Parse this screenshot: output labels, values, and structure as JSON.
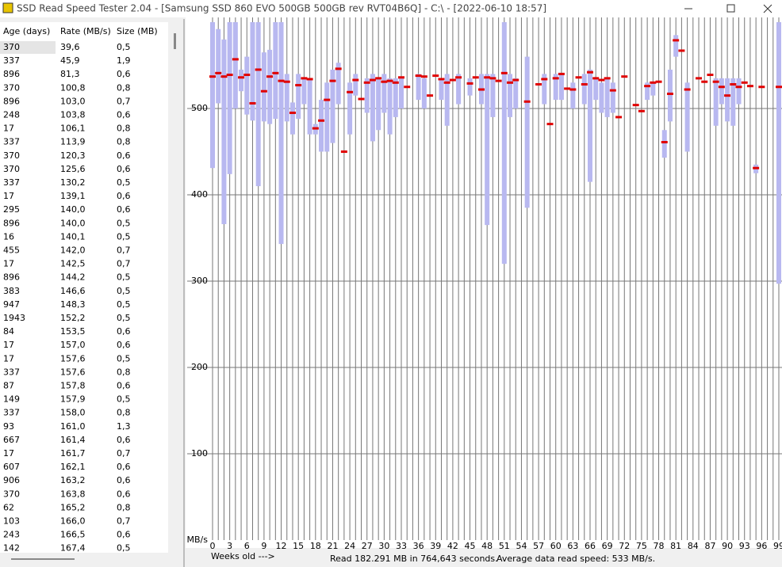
{
  "window": {
    "title": "SSD Read Speed Tester 2.04 - [Samsung SSD 860 EVO 500GB 500GB rev RVT04B6Q] - C:\\ - [2022-06-10 18:57]"
  },
  "table": {
    "headers": [
      "Age (days)",
      "Rate (MB/s)",
      "Size (MB)"
    ],
    "rows": [
      [
        "370",
        "39,6",
        "0,5"
      ],
      [
        "337",
        "45,9",
        "1,9"
      ],
      [
        "896",
        "81,3",
        "0,6"
      ],
      [
        "370",
        "100,8",
        "0,8"
      ],
      [
        "896",
        "103,0",
        "0,7"
      ],
      [
        "248",
        "103,8",
        "0,6"
      ],
      [
        "17",
        "106,1",
        "0,8"
      ],
      [
        "337",
        "113,9",
        "0,8"
      ],
      [
        "370",
        "120,3",
        "0,6"
      ],
      [
        "370",
        "125,6",
        "0,6"
      ],
      [
        "337",
        "130,2",
        "0,5"
      ],
      [
        "17",
        "139,1",
        "0,6"
      ],
      [
        "295",
        "140,0",
        "0,6"
      ],
      [
        "896",
        "140,0",
        "0,5"
      ],
      [
        "16",
        "140,1",
        "0,5"
      ],
      [
        "455",
        "142,0",
        "0,7"
      ],
      [
        "17",
        "142,5",
        "0,7"
      ],
      [
        "896",
        "144,2",
        "0,5"
      ],
      [
        "383",
        "146,6",
        "0,5"
      ],
      [
        "947",
        "148,3",
        "0,5"
      ],
      [
        "1943",
        "152,2",
        "0,5"
      ],
      [
        "84",
        "153,5",
        "0,6"
      ],
      [
        "17",
        "157,0",
        "0,6"
      ],
      [
        "17",
        "157,6",
        "0,5"
      ],
      [
        "337",
        "157,6",
        "0,8"
      ],
      [
        "87",
        "157,8",
        "0,6"
      ],
      [
        "149",
        "157,9",
        "0,5"
      ],
      [
        "337",
        "158,0",
        "0,8"
      ],
      [
        "93",
        "161,0",
        "1,3"
      ],
      [
        "667",
        "161,4",
        "0,6"
      ],
      [
        "17",
        "161,7",
        "0,7"
      ],
      [
        "607",
        "162,1",
        "0,6"
      ],
      [
        "906",
        "163,2",
        "0,6"
      ],
      [
        "370",
        "163,8",
        "0,6"
      ],
      [
        "62",
        "165,2",
        "0,8"
      ],
      [
        "103",
        "166,0",
        "0,7"
      ],
      [
        "243",
        "166,5",
        "0,6"
      ],
      [
        "142",
        "167,4",
        "0,5"
      ]
    ]
  },
  "chart_data": {
    "type": "range",
    "y_unit_label": "MB/s",
    "x_label": "Weeks old --->",
    "x": [
      0,
      1,
      2,
      3,
      4,
      5,
      6,
      7,
      8,
      9,
      10,
      11,
      12,
      13,
      14,
      15,
      16,
      17,
      18,
      19,
      20,
      21,
      22,
      23,
      24,
      25,
      26,
      27,
      28,
      29,
      30,
      31,
      32,
      33,
      34,
      35,
      36,
      37,
      38,
      39,
      40,
      41,
      42,
      43,
      44,
      45,
      46,
      47,
      48,
      49,
      50,
      51,
      52,
      53,
      54,
      55,
      56,
      57,
      58,
      59,
      60,
      61,
      62,
      63,
      64,
      65,
      66,
      67,
      68,
      69,
      70,
      71,
      72,
      73,
      74,
      75,
      76,
      77,
      78,
      79,
      80,
      81,
      82,
      83,
      84,
      85,
      86,
      87,
      88,
      89,
      90,
      91,
      92,
      93,
      94,
      95,
      96,
      97,
      98,
      99
    ],
    "median": [
      537,
      541,
      537,
      539,
      557,
      536,
      539,
      506,
      545,
      520,
      537,
      541,
      532,
      531,
      495,
      527,
      535,
      534,
      477,
      486,
      510,
      532,
      546,
      450,
      519,
      533,
      511,
      530,
      533,
      535,
      531,
      532,
      530,
      536,
      525,
      null,
      538,
      537,
      515,
      538,
      534,
      530,
      533,
      536,
      null,
      529,
      536,
      522,
      536,
      535,
      532,
      541,
      530,
      533,
      null,
      508,
      null,
      528,
      534,
      482,
      535,
      540,
      523,
      522,
      536,
      528,
      542,
      535,
      533,
      535,
      521,
      490,
      537,
      null,
      504,
      497,
      526,
      530,
      531,
      461,
      517,
      579,
      567,
      522,
      null,
      535,
      531,
      539,
      531,
      525,
      515,
      528,
      525,
      530,
      526,
      431,
      525,
      null,
      null,
      525
    ],
    "min": [
      431,
      506,
      366,
      424,
      500,
      520,
      493,
      486,
      410,
      485,
      482,
      488,
      343,
      485,
      470,
      488,
      505,
      470,
      470,
      450,
      450,
      460,
      505,
      null,
      470,
      515,
      null,
      495,
      462,
      475,
      495,
      470,
      490,
      500,
      null,
      null,
      510,
      500,
      null,
      null,
      510,
      480,
      null,
      505,
      null,
      515,
      null,
      505,
      365,
      490,
      null,
      320,
      490,
      500,
      null,
      385,
      null,
      null,
      505,
      null,
      510,
      510,
      null,
      500,
      null,
      505,
      415,
      510,
      495,
      490,
      495,
      null,
      null,
      null,
      null,
      null,
      510,
      515,
      null,
      443,
      485,
      560,
      null,
      450,
      null,
      null,
      null,
      null,
      480,
      505,
      485,
      480,
      505,
      null,
      null,
      425,
      null,
      null,
      null,
      297
    ],
    "max": [
      600,
      592,
      580,
      600,
      600,
      545,
      560,
      600,
      600,
      565,
      568,
      600,
      600,
      540,
      507,
      540,
      535,
      535,
      482,
      510,
      530,
      545,
      553,
      null,
      530,
      540,
      null,
      535,
      540,
      535,
      540,
      535,
      535,
      535,
      null,
      null,
      540,
      535,
      null,
      null,
      535,
      540,
      null,
      540,
      null,
      535,
      null,
      540,
      540,
      540,
      null,
      600,
      540,
      535,
      null,
      560,
      null,
      null,
      540,
      null,
      540,
      540,
      null,
      530,
      null,
      540,
      545,
      535,
      530,
      535,
      530,
      null,
      null,
      null,
      null,
      null,
      530,
      530,
      null,
      475,
      545,
      585,
      null,
      530,
      null,
      null,
      null,
      null,
      535,
      535,
      535,
      535,
      535,
      null,
      null,
      435,
      null,
      null,
      null,
      600
    ],
    "range_color": "#b8b8f0",
    "median_color": "#e00000",
    "xlim": [
      0,
      99
    ],
    "xticks": [
      0,
      3,
      6,
      9,
      12,
      15,
      18,
      21,
      24,
      27,
      30,
      33,
      36,
      39,
      42,
      45,
      48,
      51,
      54,
      57,
      60,
      63,
      66,
      69,
      72,
      75,
      78,
      81,
      84,
      87,
      90,
      93,
      96,
      99
    ],
    "ylim": [
      0,
      600
    ],
    "yticks": [
      100,
      200,
      300,
      400,
      500
    ],
    "grid": true
  },
  "status": {
    "read": "Read 182.291 MB in 764,643 seconds.",
    "average": "Average data read speed: 533 MB/s."
  }
}
